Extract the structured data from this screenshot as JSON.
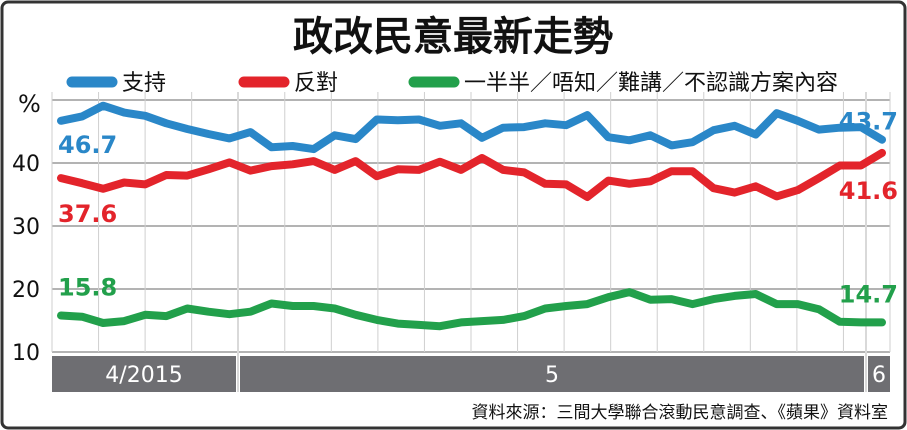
{
  "chart_data": {
    "type": "line",
    "title": "政改民意最新走勢",
    "ylabel": "%",
    "ylim": [
      10,
      50
    ],
    "yticks": [
      10,
      20,
      30,
      40
    ],
    "grid": true,
    "legend_placement": "top",
    "x_period_labels": [
      "4/2015",
      "5",
      "6"
    ],
    "series": [
      {
        "name": "支持",
        "color": "#2a87c8",
        "start_label": "46.7",
        "end_label": "43.7",
        "values": [
          46.7,
          47.4,
          49.1,
          48.0,
          47.5,
          46.3,
          45.4,
          44.6,
          43.9,
          44.9,
          42.5,
          42.7,
          42.2,
          44.4,
          43.8,
          46.9,
          46.8,
          46.9,
          45.9,
          46.3,
          44.0,
          45.6,
          45.7,
          46.3,
          46.0,
          47.6,
          44.1,
          43.6,
          44.4,
          42.8,
          43.3,
          45.2,
          45.9,
          44.5,
          47.9,
          46.7,
          45.3,
          45.6,
          45.7,
          43.7
        ]
      },
      {
        "name": "反對",
        "color": "#e3242b",
        "start_label": "37.6",
        "end_label": "41.6",
        "values": [
          37.6,
          36.8,
          35.9,
          36.9,
          36.6,
          38.1,
          38.0,
          39.0,
          40.1,
          38.8,
          39.5,
          39.8,
          40.3,
          38.9,
          40.3,
          37.9,
          39.0,
          38.9,
          40.2,
          38.9,
          40.8,
          38.9,
          38.5,
          36.7,
          36.6,
          34.6,
          37.2,
          36.7,
          37.1,
          38.7,
          38.7,
          36.0,
          35.3,
          36.3,
          34.7,
          35.7,
          37.6,
          39.6,
          39.6,
          41.6
        ]
      },
      {
        "name": "一半半／唔知／難講／不認識方案內容",
        "color": "#22a04b",
        "start_label": "15.8",
        "end_label": "14.7",
        "values": [
          15.8,
          15.6,
          14.6,
          14.9,
          15.9,
          15.7,
          16.9,
          16.4,
          16.0,
          16.4,
          17.7,
          17.3,
          17.3,
          16.9,
          15.9,
          15.1,
          14.5,
          14.3,
          14.1,
          14.7,
          14.9,
          15.1,
          15.7,
          16.9,
          17.3,
          17.6,
          18.7,
          19.5,
          18.3,
          18.4,
          17.6,
          18.4,
          18.9,
          19.2,
          17.6,
          17.6,
          16.8,
          14.8,
          14.7,
          14.7
        ]
      }
    ]
  },
  "source": "資料來源：三間大學聯合滾動民意調查、《蘋果》資料室"
}
